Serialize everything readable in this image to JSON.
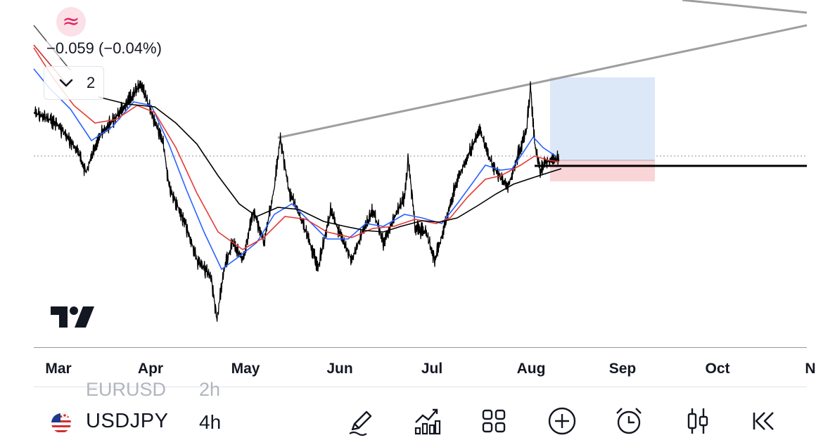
{
  "indicator_badge": {
    "icon": "approx-icon",
    "glyph": "≈"
  },
  "price_change": "−0.059 (−0.04%)",
  "collapse": {
    "count": "2"
  },
  "time_axis": {
    "months": [
      "Mar",
      "Apr",
      "May",
      "Jun",
      "Jul",
      "Aug",
      "Sep",
      "Oct",
      "N"
    ]
  },
  "footer": {
    "previous_symbol": "EURUSD",
    "previous_interval": "2h",
    "symbol": "USDJPY",
    "interval": "4h",
    "tools": [
      "pencil-icon",
      "indicators-icon",
      "layout-grid-icon",
      "add-circle-icon",
      "alarm-clock-icon",
      "candles-icon",
      "rewind-icon"
    ]
  },
  "colors": {
    "candles": "#000000",
    "ema_fast": "#2962ff",
    "ema_mid": "#e53935",
    "ema_slow": "#000000",
    "trendline": "#9e9e9e",
    "profit_zone": "#dce8f8",
    "loss_zone": "#f9d5d8",
    "accent": "#e0245e"
  }
}
